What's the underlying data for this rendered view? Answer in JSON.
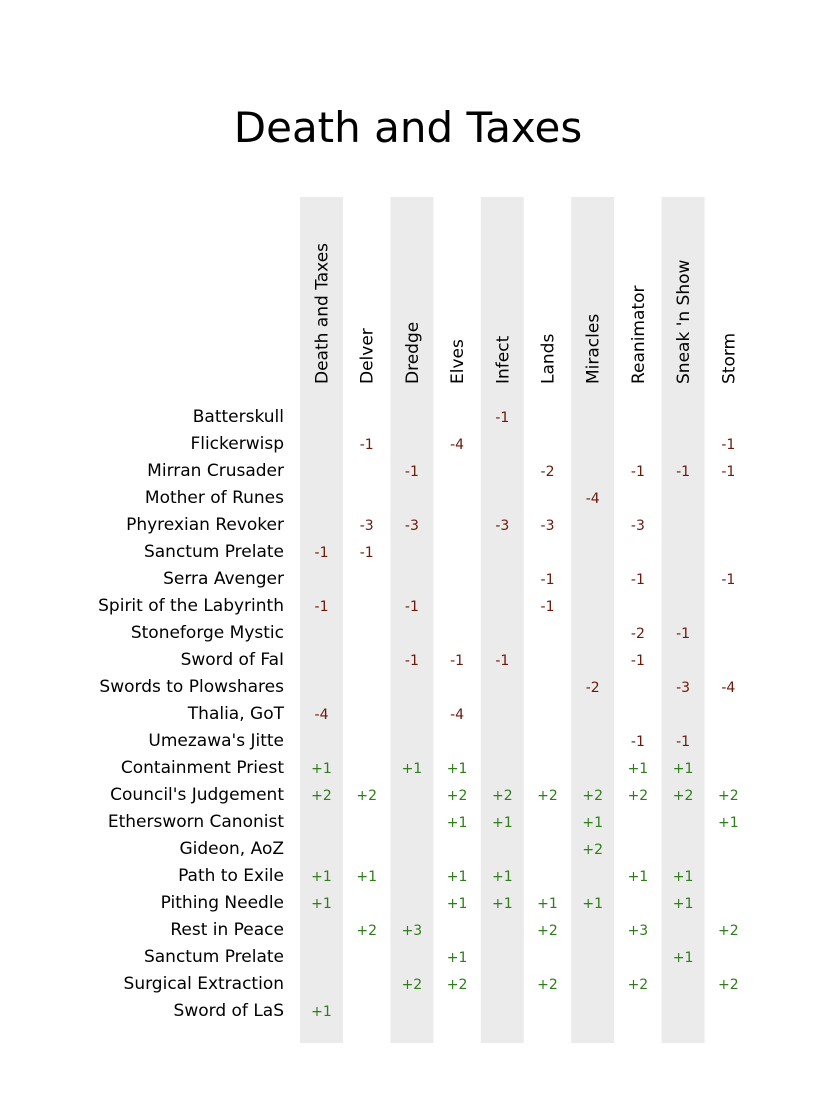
{
  "chart_data": {
    "type": "table",
    "title": "Death and Taxes",
    "columns": [
      "Death and Taxes",
      "Delver",
      "Dredge",
      "Elves",
      "Infect",
      "Lands",
      "Miracles",
      "Reanimator",
      "Sneak 'n Show",
      "Storm"
    ],
    "rows": [
      {
        "label": "Batterskull",
        "values": [
          "",
          "",
          "",
          "",
          "-1",
          "",
          "",
          "",
          "",
          ""
        ]
      },
      {
        "label": "Flickerwisp",
        "values": [
          "",
          "-1",
          "",
          "-4",
          "",
          "",
          "",
          "",
          "",
          "-1"
        ]
      },
      {
        "label": "Mirran Crusader",
        "values": [
          "",
          "",
          "-1",
          "",
          "",
          "-2",
          "",
          "-1",
          "-1",
          "-1"
        ]
      },
      {
        "label": "Mother of Runes",
        "values": [
          "",
          "",
          "",
          "",
          "",
          "",
          "-4",
          "",
          "",
          ""
        ]
      },
      {
        "label": "Phyrexian Revoker",
        "values": [
          "",
          "-3",
          "-3",
          "",
          "-3",
          "-3",
          "",
          "-3",
          "",
          ""
        ]
      },
      {
        "label": "Sanctum Prelate",
        "values": [
          "-1",
          "-1",
          "",
          "",
          "",
          "",
          "",
          "",
          "",
          ""
        ]
      },
      {
        "label": "Serra Avenger",
        "values": [
          "",
          "",
          "",
          "",
          "",
          "-1",
          "",
          "-1",
          "",
          "-1"
        ]
      },
      {
        "label": "Spirit of the Labyrinth",
        "values": [
          "-1",
          "",
          "-1",
          "",
          "",
          "-1",
          "",
          "",
          "",
          ""
        ]
      },
      {
        "label": "Stoneforge Mystic",
        "values": [
          "",
          "",
          "",
          "",
          "",
          "",
          "",
          "-2",
          "-1",
          ""
        ]
      },
      {
        "label": "Sword of FaI",
        "values": [
          "",
          "",
          "-1",
          "-1",
          "-1",
          "",
          "",
          "-1",
          "",
          ""
        ]
      },
      {
        "label": "Swords to Plowshares",
        "values": [
          "",
          "",
          "",
          "",
          "",
          "",
          "-2",
          "",
          "-3",
          "-4"
        ]
      },
      {
        "label": "Thalia, GoT",
        "values": [
          "-4",
          "",
          "",
          "-4",
          "",
          "",
          "",
          "",
          "",
          ""
        ]
      },
      {
        "label": "Umezawa's Jitte",
        "values": [
          "",
          "",
          "",
          "",
          "",
          "",
          "",
          "-1",
          "-1",
          ""
        ]
      },
      {
        "label": "Containment Priest",
        "values": [
          "+1",
          "",
          "+1",
          "+1",
          "",
          "",
          "",
          "+1",
          "+1",
          ""
        ]
      },
      {
        "label": "Council's Judgement",
        "values": [
          "+2",
          "+2",
          "",
          "+2",
          "+2",
          "+2",
          "+2",
          "+2",
          "+2",
          "+2"
        ]
      },
      {
        "label": "Ethersworn Canonist",
        "values": [
          "",
          "",
          "",
          "+1",
          "+1",
          "",
          "+1",
          "",
          "",
          "+1"
        ]
      },
      {
        "label": "Gideon, AoZ",
        "values": [
          "",
          "",
          "",
          "",
          "",
          "",
          "+2",
          "",
          "",
          ""
        ]
      },
      {
        "label": "Path to Exile",
        "values": [
          "+1",
          "+1",
          "",
          "+1",
          "+1",
          "",
          "",
          "+1",
          "+1",
          ""
        ]
      },
      {
        "label": "Pithing Needle",
        "values": [
          "+1",
          "",
          "",
          "+1",
          "+1",
          "+1",
          "+1",
          "",
          "+1",
          ""
        ]
      },
      {
        "label": "Rest in Peace",
        "values": [
          "",
          "+2",
          "+3",
          "",
          "",
          "+2",
          "",
          "+3",
          "",
          "+2"
        ]
      },
      {
        "label": "Sanctum Prelate",
        "values": [
          "",
          "",
          "",
          "+1",
          "",
          "",
          "",
          "",
          "+1",
          ""
        ]
      },
      {
        "label": "Surgical Extraction",
        "values": [
          "",
          "",
          "+2",
          "+2",
          "",
          "+2",
          "",
          "+2",
          "",
          "+2"
        ]
      },
      {
        "label": "Sword of LaS",
        "values": [
          "+1",
          "",
          "",
          "",
          "",
          "",
          "",
          "",
          "",
          ""
        ]
      }
    ],
    "colors": {
      "negative": "#6b1a0a",
      "positive": "#2e7d1a",
      "band": "#ebebeb",
      "text": "#000000"
    },
    "alternating_column_bands": true
  }
}
